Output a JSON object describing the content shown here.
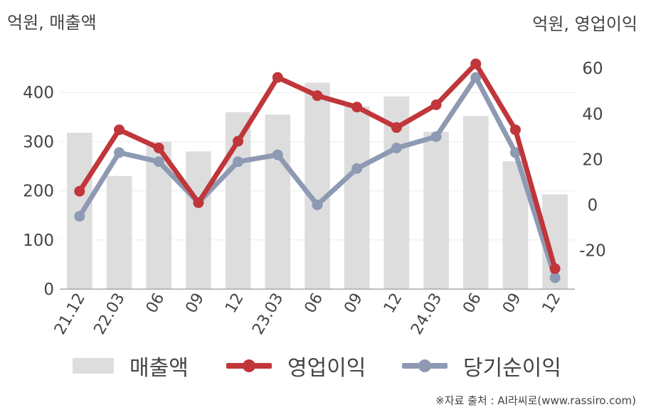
{
  "units": {
    "left": "억원, 매출액",
    "right": "억원, 영업이익"
  },
  "source": "※자료 출처 : AI라씨로(www.rassiro.com)",
  "colors": {
    "revenue": "#dddddd",
    "operating": "#c0363a",
    "net": "#8e9ab3"
  },
  "legend": [
    {
      "label": "매출액",
      "kind": "bar",
      "color": "#dddddd"
    },
    {
      "label": "영업이익",
      "kind": "line",
      "color": "#c0363a"
    },
    {
      "label": "당기순이익",
      "kind": "line",
      "color": "#8e9ab3"
    }
  ],
  "chart_data": {
    "type": "bar",
    "categories": [
      "21.12",
      "22.03",
      "06",
      "09",
      "12",
      "23.03",
      "06",
      "09",
      "12",
      "24.03",
      "06",
      "09",
      "12"
    ],
    "left_axis": {
      "ticks": [
        "0",
        "100",
        "200",
        "300",
        "400"
      ],
      "range": [
        0,
        500
      ]
    },
    "right_axis": {
      "ticks": [
        "-20",
        "0",
        "20",
        "40",
        "60"
      ],
      "range": [
        -37,
        71
      ]
    },
    "series": [
      {
        "name": "매출액",
        "type": "bar",
        "axis": "left",
        "values": [
          318,
          230,
          300,
          280,
          360,
          355,
          420,
          372,
          392,
          320,
          352,
          260,
          193
        ]
      },
      {
        "name": "영업이익",
        "type": "line",
        "axis": "right",
        "values": [
          6,
          33,
          25,
          1,
          28,
          56,
          48,
          43,
          34,
          44,
          62,
          33,
          -28
        ]
      },
      {
        "name": "당기순이익",
        "type": "line",
        "axis": "right",
        "values": [
          -5,
          23,
          19,
          1,
          19,
          22,
          0,
          16,
          25,
          30,
          56,
          23,
          -32
        ]
      }
    ],
    "grid": true,
    "legend_position": "bottom"
  }
}
